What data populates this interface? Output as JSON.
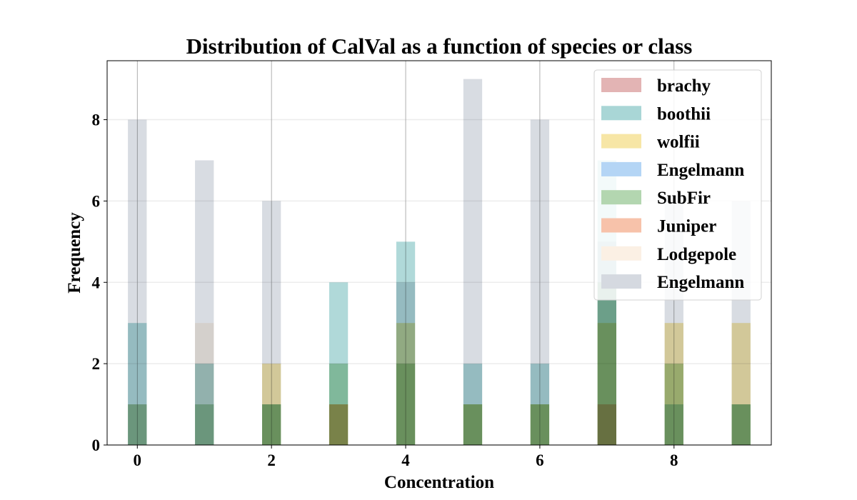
{
  "chart_data": {
    "type": "bar",
    "title": "Distribution of CalVal as a function of species or class",
    "xlabel": "Concentration",
    "ylabel": "Frequency",
    "xlim": [
      -0.45,
      9.45
    ],
    "ylim": [
      0,
      9.45
    ],
    "xticks": [
      0,
      2,
      4,
      6,
      8
    ],
    "yticks": [
      0,
      2,
      4,
      6,
      8
    ],
    "grid": true,
    "legend_position": "top-right",
    "bar_width": 0.28,
    "x": [
      0,
      1,
      2,
      3,
      4,
      5,
      6,
      7,
      8,
      9
    ],
    "series": [
      {
        "name": "brachy",
        "color": "#e3b4b4",
        "values": [
          0,
          0,
          0,
          0,
          0,
          0,
          0,
          0,
          0,
          0
        ]
      },
      {
        "name": "boothii",
        "color": "#a9d6d6",
        "values": [
          3,
          2,
          1,
          4,
          5,
          2,
          2,
          7,
          1,
          1
        ]
      },
      {
        "name": "wolfii",
        "color": "#f7e6a6",
        "values": [
          0,
          0,
          2,
          1,
          3,
          1,
          1,
          3,
          3,
          3
        ]
      },
      {
        "name": "Engelmann",
        "color": "#b4d5f5",
        "values": [
          0,
          0,
          0,
          0,
          0,
          0,
          0,
          0,
          0,
          0
        ]
      },
      {
        "name": "SubFir",
        "color": "#b3d6b0",
        "values": [
          1,
          1,
          1,
          2,
          2,
          1,
          1,
          4,
          2,
          1
        ]
      },
      {
        "name": "Juniper",
        "color": "#f7c2aa",
        "values": [
          0,
          0,
          0,
          1,
          0,
          0,
          0,
          1,
          0,
          0
        ]
      },
      {
        "name": "Lodgepole",
        "color": "#fbf0e4",
        "values": [
          1,
          3,
          0,
          0,
          0,
          0,
          0,
          0,
          0,
          0
        ]
      },
      {
        "name": "Engelmann",
        "color": "#d5d9e0",
        "values": [
          8,
          7,
          6,
          0,
          4,
          9,
          8,
          5,
          6,
          6
        ]
      }
    ]
  }
}
